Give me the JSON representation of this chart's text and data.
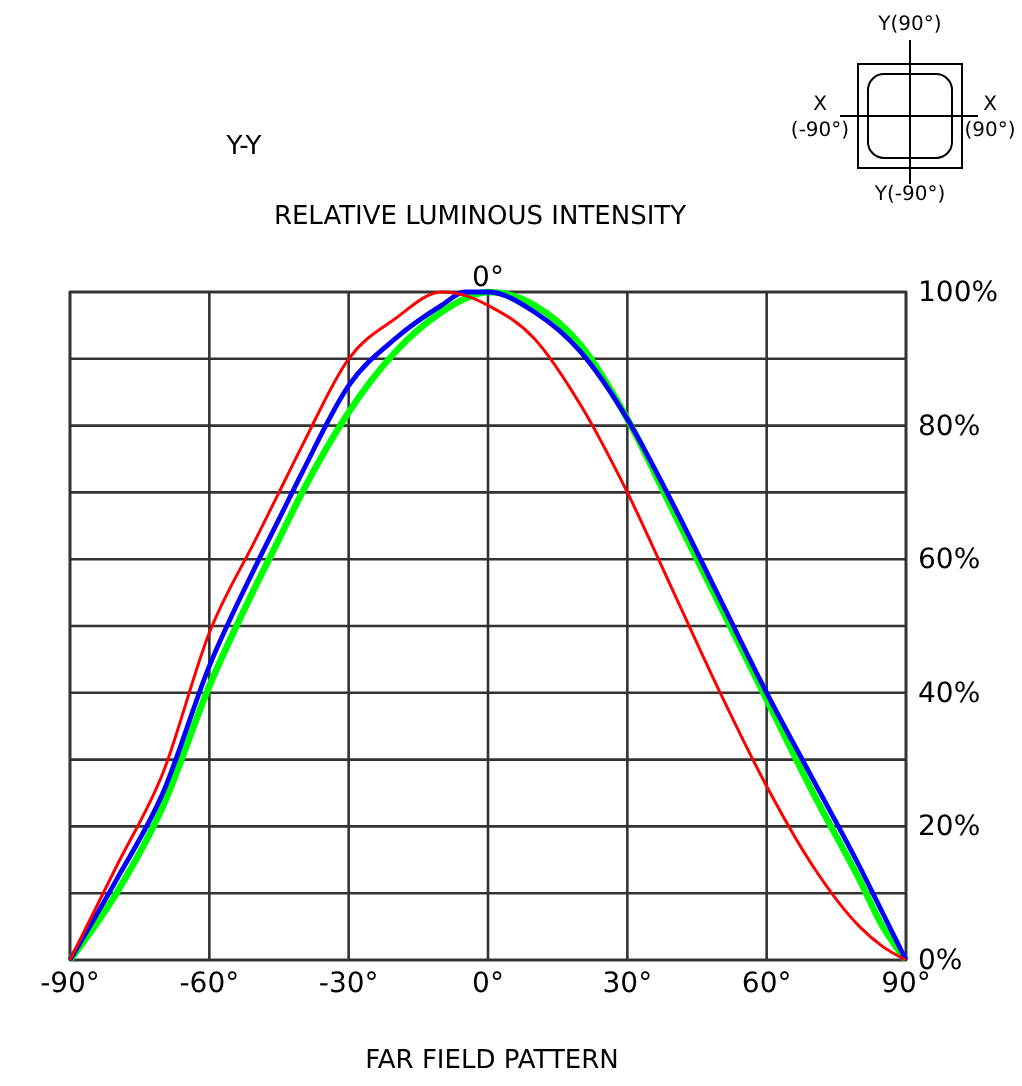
{
  "chart_data": {
    "type": "line",
    "title": "RELATIVE LUMINOUS INTENSITY",
    "subtitle": "Y-Y",
    "xlabel": "FAR FIELD PATTERN",
    "xlim": [
      -90,
      90
    ],
    "xticks": [
      {
        "value": -90,
        "label": "-90°"
      },
      {
        "value": -60,
        "label": "-60°"
      },
      {
        "value": -30,
        "label": "-30°"
      },
      {
        "value": 0,
        "label": "0°"
      },
      {
        "value": 30,
        "label": "30°"
      },
      {
        "value": 60,
        "label": "60°"
      },
      {
        "value": 90,
        "label": "90°"
      }
    ],
    "ylim": [
      0,
      100
    ],
    "yticks": [
      {
        "value": 0,
        "label": "0%"
      },
      {
        "value": 10,
        "label": null
      },
      {
        "value": 20,
        "label": "20%"
      },
      {
        "value": 30,
        "label": null
      },
      {
        "value": 40,
        "label": "40%"
      },
      {
        "value": 50,
        "label": null
      },
      {
        "value": 60,
        "label": "60%"
      },
      {
        "value": 70,
        "label": null
      },
      {
        "value": 80,
        "label": "80%"
      },
      {
        "value": 90,
        "label": null
      },
      {
        "value": 100,
        "label": "100%"
      }
    ],
    "grid": true,
    "marker": "none",
    "line_style": "solid",
    "x": [
      -90,
      -80,
      -70,
      -60,
      -50,
      -45,
      -40,
      -30,
      -20,
      -10,
      -5,
      0,
      10,
      20,
      30,
      40,
      50,
      60,
      70,
      80,
      85,
      90
    ],
    "series": [
      {
        "color": "#00ff00",
        "values": [
          0,
          10,
          23,
          41,
          56,
          63,
          70,
          82,
          91,
          97,
          99,
          100,
          98,
          92,
          81,
          67,
          53,
          39,
          25,
          12,
          5,
          0
        ]
      },
      {
        "color": "#0000ff",
        "values": [
          0,
          12,
          25,
          44,
          59,
          66,
          73,
          86,
          93,
          98,
          100,
          100,
          97,
          91,
          81,
          68,
          54,
          40,
          27,
          14,
          7,
          0
        ]
      },
      {
        "color": "#ff0000",
        "values": [
          0,
          14,
          28,
          49,
          63,
          70,
          77,
          90,
          96,
          100,
          99.5,
          98,
          93,
          83,
          70,
          55,
          40,
          26,
          14,
          5,
          2,
          0
        ]
      }
    ],
    "annotations": [
      {
        "text": "0°",
        "x": 0,
        "y": 100
      },
      "Y(90°)",
      "X (-90°)",
      "X (90°)",
      "Y(-90°)"
    ]
  }
}
